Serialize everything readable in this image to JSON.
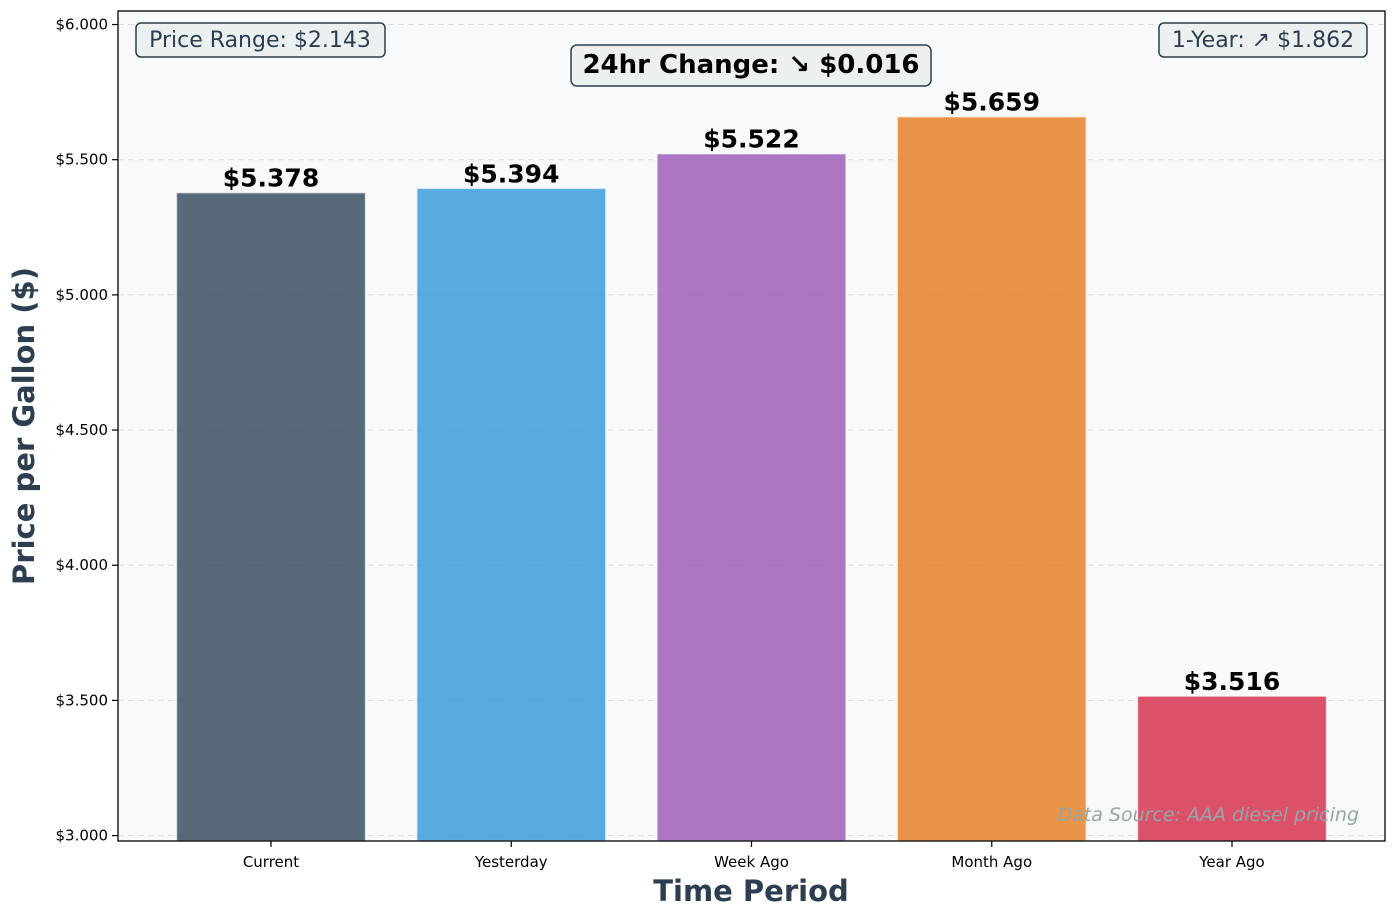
{
  "chart_data": {
    "type": "bar",
    "categories": [
      "Current",
      "Yesterday",
      "Week Ago",
      "Month Ago",
      "Year Ago"
    ],
    "values": [
      5.378,
      5.394,
      5.522,
      5.659,
      3.516
    ],
    "value_labels": [
      "$5.378",
      "$5.394",
      "$5.522",
      "$5.659",
      "$3.516"
    ],
    "colors": [
      "#34495e",
      "#3498db",
      "#9b59b6",
      "#e67e22",
      "#d62c4a"
    ],
    "xlabel": "Time Period",
    "ylabel": "Price per Gallon ($)",
    "ylim": [
      2.98,
      6.05
    ],
    "yticks": [
      3.0,
      3.5,
      4.0,
      4.5,
      5.0,
      5.5,
      6.0
    ],
    "ytick_labels": [
      "$3.000",
      "$3.500",
      "$4.000",
      "$4.500",
      "$5.000",
      "$5.500",
      "$6.000"
    ],
    "grid": true,
    "annotations": {
      "price_range": "Price Range: $2.143",
      "change_24hr": "24hr Change: ↘ $0.016",
      "one_year": "1-Year: ↗ $1.862",
      "source": "Data Source: AAA diesel pricing"
    }
  }
}
